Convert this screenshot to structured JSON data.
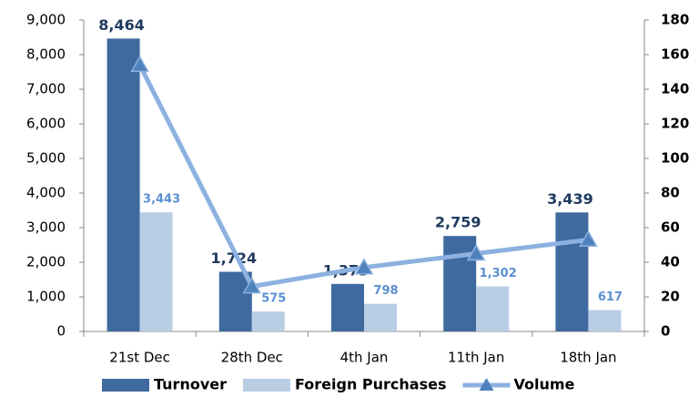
{
  "chart_data": {
    "type": "bar",
    "categories": [
      "21st Dec",
      "28th Dec",
      "4th Jan",
      "11th Jan",
      "18th Jan"
    ],
    "series": [
      {
        "name": "Turnover",
        "color": "#3e6a9f",
        "values": [
          8464,
          1724,
          1373,
          2759,
          3439
        ],
        "value_labels": [
          "8,464",
          "1,724",
          "1,373",
          "2,759",
          "3,439"
        ]
      },
      {
        "name": "Foreign Purchases",
        "color": "#b9cde5",
        "values": [
          3443,
          575,
          798,
          1302,
          617
        ],
        "value_labels": [
          "3,443",
          "575",
          "798",
          "1,302",
          "617"
        ]
      },
      {
        "name": "Volume",
        "color": "#8cb1e0",
        "type": "line",
        "axis": "y2",
        "values": [
          154,
          26,
          37,
          45,
          53
        ]
      }
    ],
    "ylim": [
      0,
      9000
    ],
    "yticks": [
      0,
      {
        "value": 1000,
        "label": "1,000"
      },
      {
        "value": 2000,
        "label": "2,000"
      },
      {
        "value": 3000,
        "label": "3,000"
      },
      {
        "value": 4000,
        "label": "4,000"
      },
      {
        "value": 5000,
        "label": "5,000"
      },
      {
        "value": 6000,
        "label": "6,000"
      },
      {
        "value": 7000,
        "label": "7,000"
      },
      {
        "value": 8000,
        "label": "8,000"
      },
      {
        "value": 9000,
        "label": "9,000"
      }
    ],
    "y2lim": [
      0,
      180
    ],
    "y2ticks": [
      0,
      20,
      40,
      60,
      80,
      100,
      120,
      140,
      160,
      180
    ],
    "legend": "bottom"
  }
}
